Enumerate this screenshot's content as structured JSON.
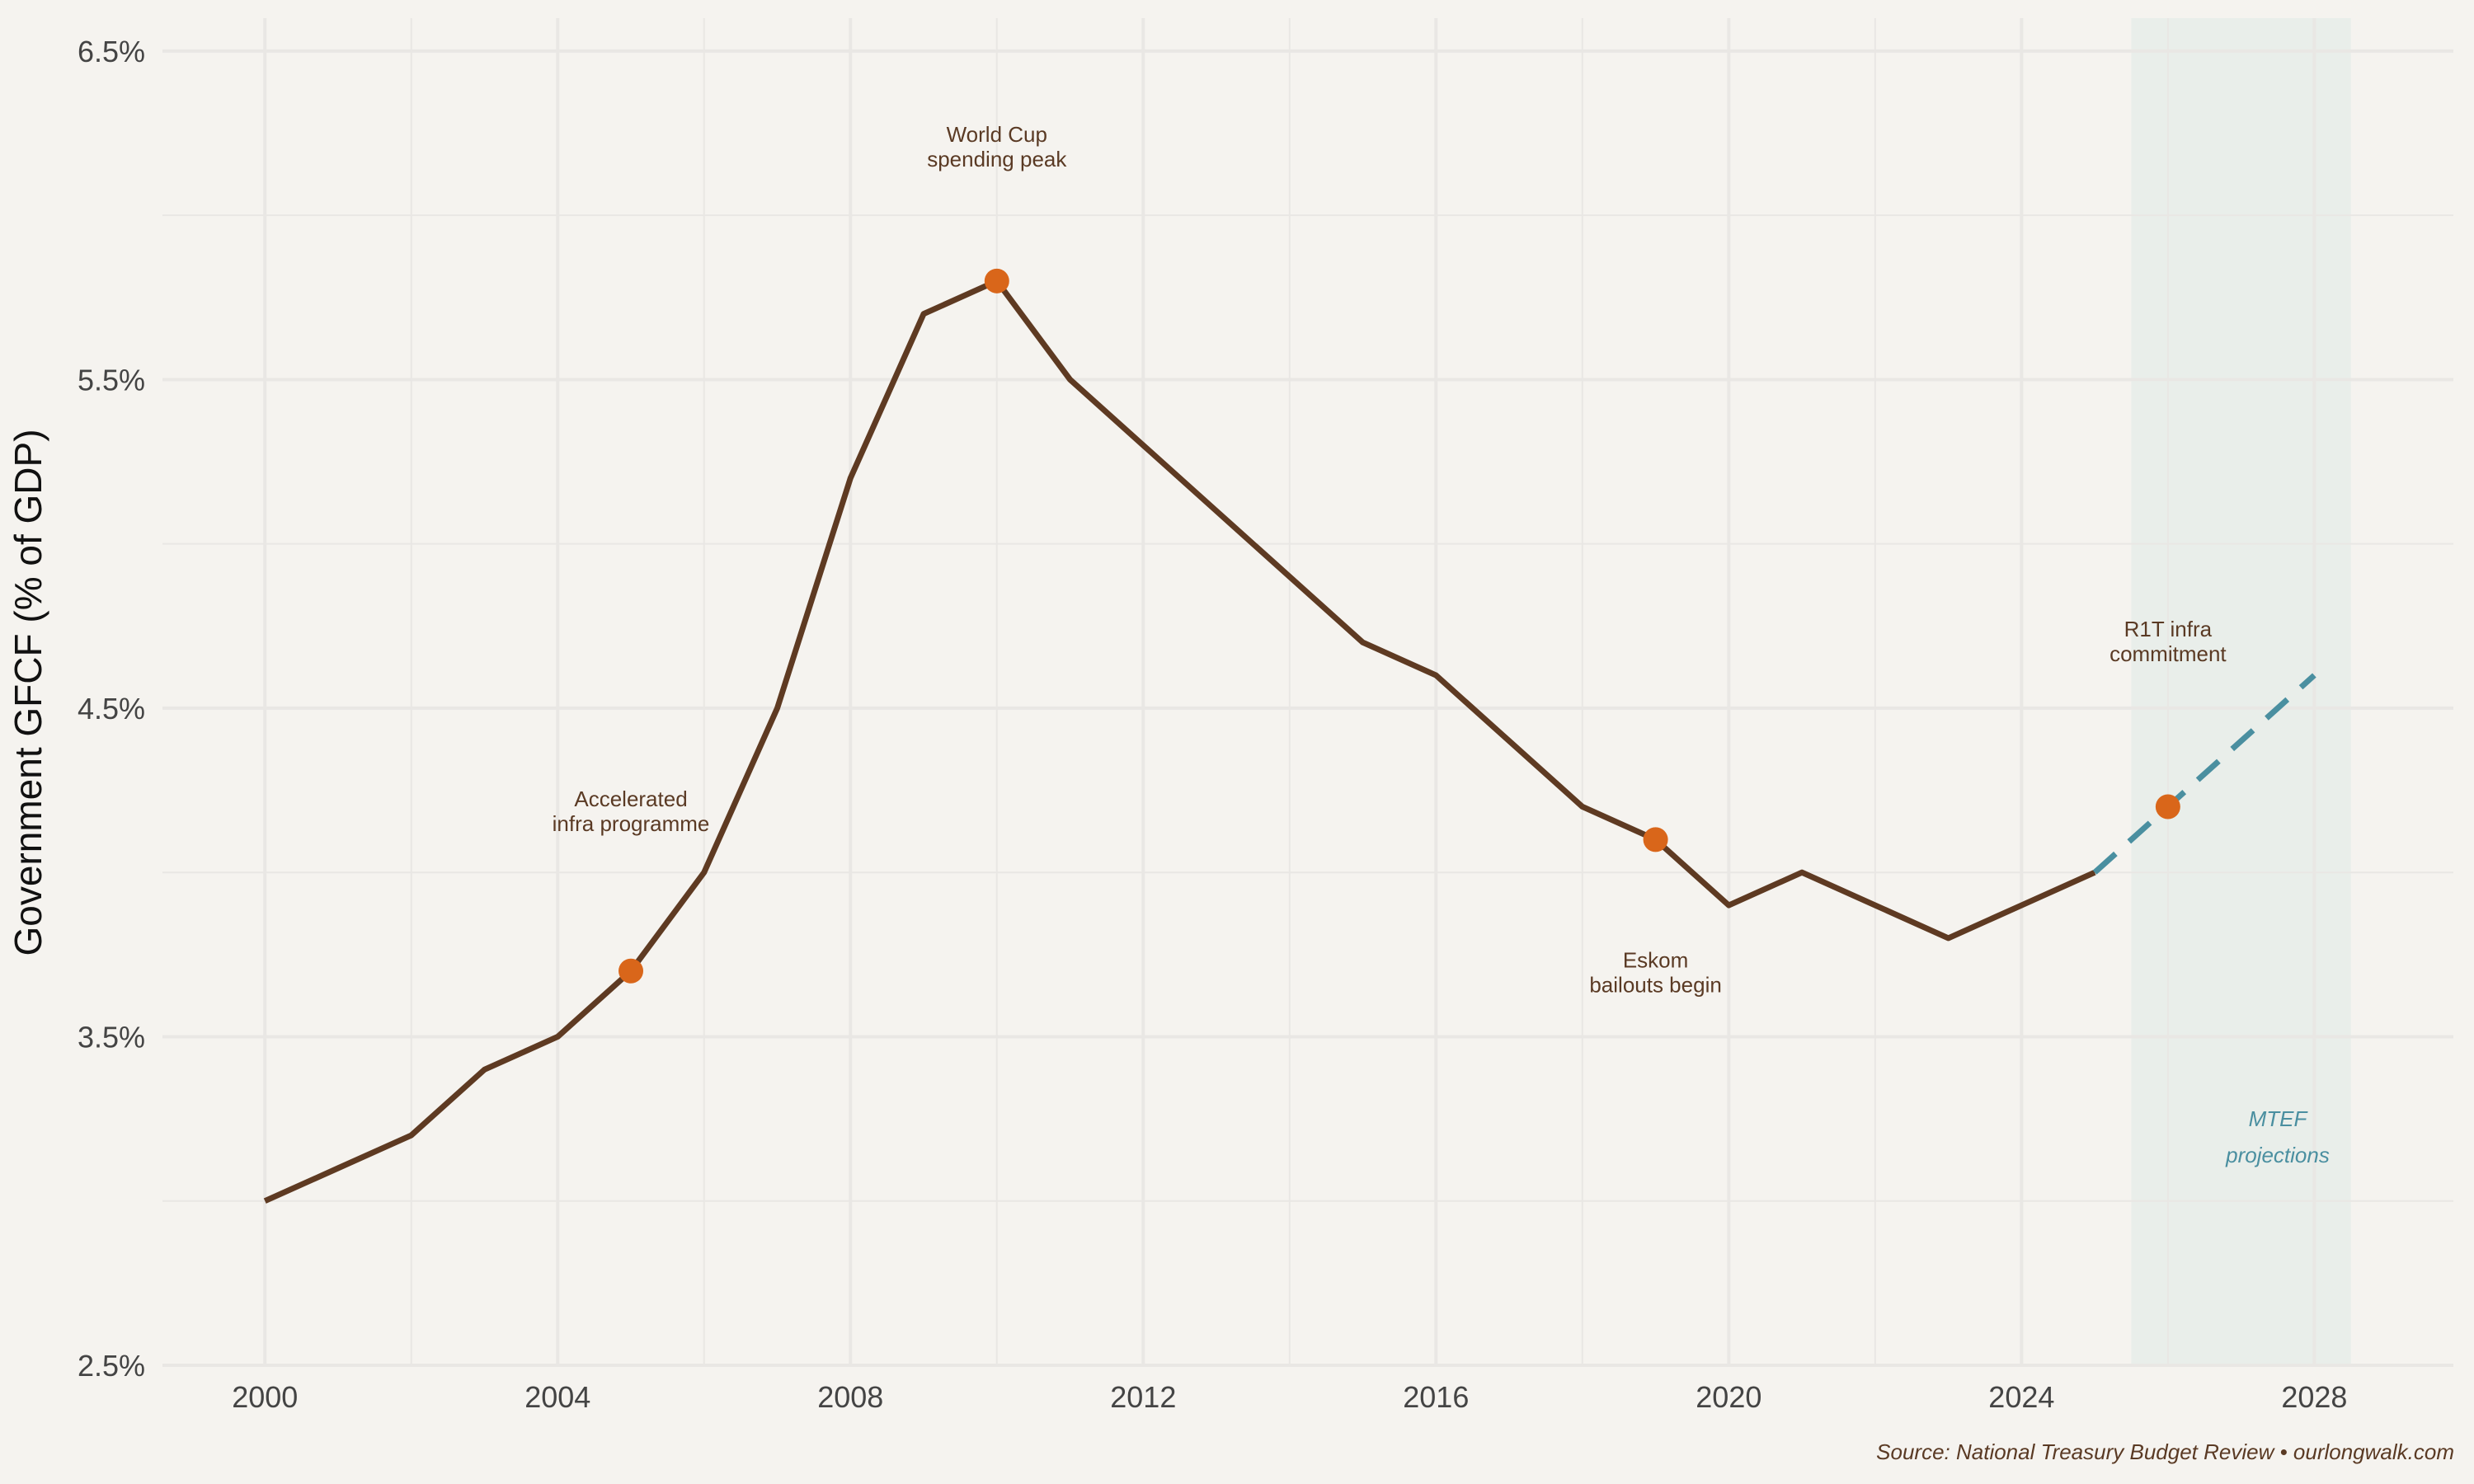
{
  "chart_data": {
    "type": "line",
    "title": "",
    "xlabel": "",
    "ylabel": "Government GFCF (% of GDP)",
    "xlim": [
      1998.6,
      2029.9
    ],
    "ylim": [
      2.5,
      6.6
    ],
    "x_ticks": [
      2000,
      2004,
      2008,
      2012,
      2016,
      2020,
      2024,
      2028
    ],
    "x_tick_labels": [
      "2000",
      "2004",
      "2008",
      "2012",
      "2016",
      "2020",
      "2024",
      "2028"
    ],
    "y_ticks": [
      2.5,
      3.5,
      4.5,
      5.5,
      6.5
    ],
    "y_tick_labels": [
      "2.5%",
      "3.5%",
      "4.5%",
      "5.5%",
      "6.5%"
    ],
    "grid": true,
    "series": [
      {
        "style": "solid",
        "color": "#5e3a22",
        "x": [
          2000,
          2001,
          2002,
          2003,
          2004,
          2005,
          2006,
          2007,
          2008,
          2009,
          2010,
          2011,
          2012,
          2013,
          2014,
          2015,
          2016,
          2017,
          2018,
          2019,
          2020,
          2021,
          2022,
          2023,
          2024,
          2025
        ],
        "y": [
          3.0,
          3.1,
          3.2,
          3.4,
          3.5,
          3.7,
          4.0,
          4.5,
          5.2,
          5.7,
          5.8,
          5.5,
          5.3,
          5.1,
          4.9,
          4.7,
          4.6,
          4.4,
          4.2,
          4.1,
          3.9,
          4.0,
          3.9,
          3.8,
          3.9,
          4.0
        ]
      },
      {
        "style": "dashed",
        "color": "#4a8fa0",
        "x": [
          2025,
          2026,
          2027,
          2028
        ],
        "y": [
          4.0,
          4.2,
          4.4,
          4.6
        ]
      }
    ],
    "highlight_points": [
      {
        "x": 2005,
        "y": 3.7,
        "label": [
          "Accelerated",
          "infra programme"
        ],
        "label_pos": "above"
      },
      {
        "x": 2010,
        "y": 5.8,
        "label": [
          "World Cup",
          "spending peak"
        ],
        "label_pos": "above"
      },
      {
        "x": 2019,
        "y": 4.1,
        "label": [
          "Eskom",
          "bailouts begin"
        ],
        "label_pos": "below"
      },
      {
        "x": 2026,
        "y": 4.2,
        "label": [
          "R1T infra",
          "commitment"
        ],
        "label_pos": "above"
      }
    ],
    "projection_region": {
      "x_start": 2025.5,
      "x_end": 2028.5,
      "label": [
        "MTEF",
        "projections"
      ]
    },
    "source": "Source: National Treasury Budget Review • ourlongwalk.com",
    "colors": {
      "background": "#f5f3ef",
      "line": "#5e3a22",
      "projection": "#4a8fa0",
      "marker": "#d9661a",
      "shade": "#e6ece9",
      "grid": "#e9e7e4",
      "annotation": "#5a3a24"
    }
  }
}
